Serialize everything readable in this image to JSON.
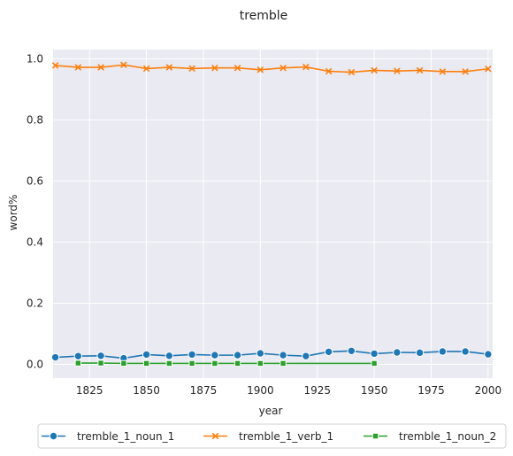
{
  "chart_data": {
    "type": "line",
    "title": "tremble",
    "xlabel": "year",
    "ylabel": "word%",
    "xlim": [
      1809,
      2002
    ],
    "ylim": [
      -0.045,
      1.03
    ],
    "xticks": [
      1825,
      1850,
      1875,
      1900,
      1925,
      1950,
      1975,
      2000
    ],
    "yticks": [
      0.0,
      0.2,
      0.4,
      0.6,
      0.8,
      1.0
    ],
    "xtick_labels": [
      "1825",
      "1850",
      "1875",
      "1900",
      "1925",
      "1950",
      "1975",
      "2000"
    ],
    "ytick_labels": [
      "0.0",
      "0.2",
      "0.4",
      "0.6",
      "0.8",
      "1.0"
    ],
    "grid": true,
    "legend_position": "bottom-center",
    "series": [
      {
        "name": "tremble_1_noun_1",
        "color": "#1f77b4",
        "marker": "circle",
        "x": [
          1810,
          1820,
          1830,
          1840,
          1850,
          1860,
          1870,
          1880,
          1890,
          1900,
          1910,
          1920,
          1930,
          1940,
          1950,
          1960,
          1970,
          1980,
          1990,
          2000
        ],
        "values": [
          0.023,
          0.027,
          0.028,
          0.02,
          0.032,
          0.028,
          0.032,
          0.03,
          0.03,
          0.036,
          0.03,
          0.027,
          0.041,
          0.044,
          0.035,
          0.039,
          0.038,
          0.042,
          0.042,
          0.033
        ]
      },
      {
        "name": "tremble_1_verb_1",
        "color": "#ff7f0e",
        "marker": "x",
        "x": [
          1810,
          1820,
          1830,
          1840,
          1850,
          1860,
          1870,
          1880,
          1890,
          1900,
          1910,
          1920,
          1930,
          1940,
          1950,
          1960,
          1970,
          1980,
          1990,
          2000
        ],
        "values": [
          0.978,
          0.972,
          0.972,
          0.98,
          0.968,
          0.972,
          0.968,
          0.97,
          0.97,
          0.964,
          0.97,
          0.973,
          0.959,
          0.956,
          0.962,
          0.96,
          0.962,
          0.958,
          0.958,
          0.967
        ]
      },
      {
        "name": "tremble_1_noun_2",
        "color": "#2ca02c",
        "marker": "square",
        "x": [
          1820,
          1830,
          1840,
          1850,
          1860,
          1870,
          1880,
          1890,
          1900,
          1910,
          1950
        ],
        "values": [
          0.004,
          0.004,
          0.003,
          0.003,
          0.003,
          0.003,
          0.003,
          0.003,
          0.003,
          0.003,
          0.003
        ]
      }
    ]
  }
}
